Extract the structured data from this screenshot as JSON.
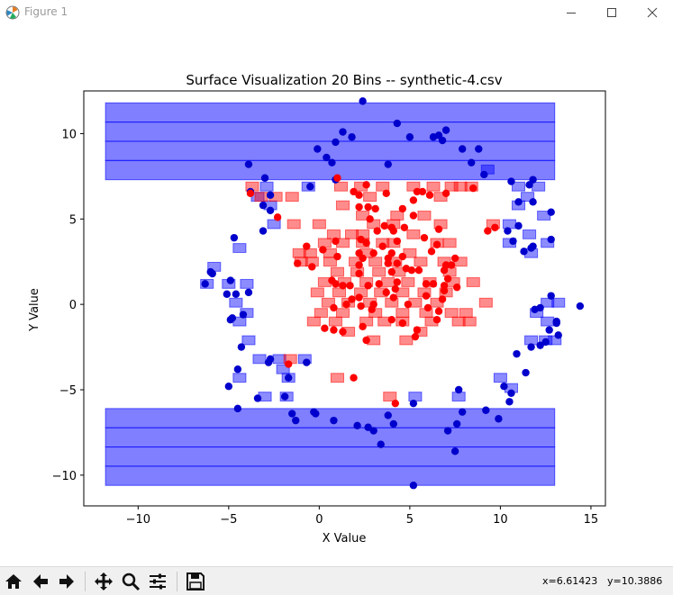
{
  "window": {
    "title": "Figure 1"
  },
  "toolbar": {
    "buttons": [
      "home-icon",
      "back-icon",
      "forward-icon",
      "pan-icon",
      "zoom-icon",
      "configure-icon",
      "save-icon"
    ],
    "coords": {
      "x": "x=6.61423",
      "y": "y=10.3886"
    }
  },
  "chart_data": {
    "type": "scatter",
    "title": "Surface Visualization 20 Bins -- synthetic-4.csv",
    "xlabel": "X Value",
    "ylabel": "Y Value",
    "xlim": [
      -13,
      15.8
    ],
    "ylim": [
      -11.8,
      12.5
    ],
    "xticks": [
      -10,
      -5,
      0,
      5,
      10,
      15
    ],
    "yticks": [
      -10,
      -5,
      0,
      5,
      10
    ],
    "grid": false,
    "colors": {
      "blue_cell": "#0000ff",
      "red_cell": "#ff0000",
      "blue_point": "#0000cc",
      "red_point": "#ff0000"
    },
    "blue_bands": [
      {
        "x0": -11.8,
        "x1": 13.0,
        "y0": 7.3,
        "y1": 11.8,
        "rows": 4
      },
      {
        "x0": -11.8,
        "x1": 13.0,
        "y0": -10.6,
        "y1": -6.1,
        "rows": 4
      }
    ],
    "blue_cells": [
      [
        -3.4,
        6.3
      ],
      [
        -2.9,
        6.9
      ],
      [
        -2.7,
        5.8
      ],
      [
        -2.5,
        4.7
      ],
      [
        -0.6,
        6.9
      ],
      [
        -4.4,
        3.3
      ],
      [
        -5.8,
        2.2
      ],
      [
        -5.0,
        1.2
      ],
      [
        -4.0,
        1.2
      ],
      [
        -6.2,
        1.2
      ],
      [
        -4.6,
        0.1
      ],
      [
        -4.0,
        -0.5
      ],
      [
        -4.4,
        -1.0
      ],
      [
        -3.9,
        -2.1
      ],
      [
        -3.3,
        -3.2
      ],
      [
        -2.2,
        -3.2
      ],
      [
        -0.8,
        -3.2
      ],
      [
        -2.0,
        -3.8
      ],
      [
        -4.4,
        -4.3
      ],
      [
        -1.7,
        -4.3
      ],
      [
        -3.0,
        -5.4
      ],
      [
        -1.8,
        -5.4
      ],
      [
        5.3,
        -5.4
      ],
      [
        7.7,
        -5.4
      ],
      [
        10.0,
        -4.3
      ],
      [
        10.6,
        -4.9
      ],
      [
        11.0,
        6.9
      ],
      [
        12.1,
        6.9
      ],
      [
        11.5,
        6.3
      ],
      [
        11.0,
        5.8
      ],
      [
        12.4,
        5.2
      ],
      [
        10.5,
        4.7
      ],
      [
        11.6,
        4.1
      ],
      [
        10.5,
        3.6
      ],
      [
        12.6,
        3.6
      ],
      [
        11.7,
        3.0
      ],
      [
        12.6,
        0.1
      ],
      [
        13.2,
        0.1
      ],
      [
        12.0,
        -0.5
      ],
      [
        12.6,
        -1.0
      ],
      [
        11.7,
        -2.1
      ],
      [
        12.5,
        -2.1
      ],
      [
        13.0,
        -2.1
      ],
      [
        9.3,
        7.9
      ]
    ],
    "red_cells": [
      [
        -3.7,
        6.9
      ],
      [
        -3.2,
        6.3
      ],
      [
        -2.4,
        6.3
      ],
      [
        -1.5,
        6.3
      ],
      [
        1.2,
        6.9
      ],
      [
        2.3,
        6.9
      ],
      [
        2.8,
        6.3
      ],
      [
        3.5,
        6.9
      ],
      [
        5.2,
        6.9
      ],
      [
        6.3,
        6.9
      ],
      [
        6.7,
        6.3
      ],
      [
        7.3,
        6.9
      ],
      [
        7.8,
        6.9
      ],
      [
        8.4,
        6.9
      ],
      [
        2.4,
        5.2
      ],
      [
        3.0,
        4.7
      ],
      [
        2.4,
        4.1
      ],
      [
        1.8,
        4.1
      ],
      [
        0.0,
        4.7
      ],
      [
        0.8,
        4.1
      ],
      [
        4.3,
        5.2
      ],
      [
        5.8,
        5.2
      ],
      [
        6.7,
        4.7
      ],
      [
        5.2,
        4.1
      ],
      [
        9.6,
        4.7
      ],
      [
        -1.4,
        4.7
      ],
      [
        -0.5,
        3.0
      ],
      [
        -1.1,
        3.0
      ],
      [
        0.3,
        3.6
      ],
      [
        1.3,
        3.6
      ],
      [
        2.4,
        3.6
      ],
      [
        3.5,
        3.6
      ],
      [
        4.1,
        3.6
      ],
      [
        7.2,
        3.6
      ],
      [
        6.5,
        3.6
      ],
      [
        -1.0,
        2.5
      ],
      [
        -0.4,
        2.5
      ],
      [
        0.6,
        2.5
      ],
      [
        2.0,
        2.5
      ],
      [
        3.1,
        2.5
      ],
      [
        4.2,
        2.5
      ],
      [
        5.6,
        2.5
      ],
      [
        6.9,
        2.5
      ],
      [
        7.8,
        2.5
      ],
      [
        1.0,
        1.9
      ],
      [
        2.1,
        1.9
      ],
      [
        3.3,
        1.9
      ],
      [
        4.4,
        1.9
      ],
      [
        7.2,
        1.9
      ],
      [
        0.3,
        1.3
      ],
      [
        1.4,
        1.3
      ],
      [
        2.6,
        1.3
      ],
      [
        3.8,
        1.3
      ],
      [
        4.9,
        1.3
      ],
      [
        6.1,
        1.3
      ],
      [
        7.4,
        1.3
      ],
      [
        8.5,
        1.3
      ],
      [
        -0.1,
        0.7
      ],
      [
        1.1,
        0.7
      ],
      [
        2.3,
        0.7
      ],
      [
        3.4,
        0.7
      ],
      [
        4.6,
        0.7
      ],
      [
        5.8,
        0.7
      ],
      [
        7.0,
        0.7
      ],
      [
        0.5,
        0.1
      ],
      [
        1.6,
        0.1
      ],
      [
        2.8,
        0.1
      ],
      [
        4.0,
        0.1
      ],
      [
        5.3,
        0.1
      ],
      [
        6.5,
        0.1
      ],
      [
        9.2,
        0.1
      ],
      [
        0.1,
        -0.5
      ],
      [
        1.3,
        -0.5
      ],
      [
        3.1,
        -0.5
      ],
      [
        4.6,
        -0.5
      ],
      [
        5.9,
        -0.5
      ],
      [
        7.3,
        -0.5
      ],
      [
        8.1,
        -0.5
      ],
      [
        -0.3,
        -1.0
      ],
      [
        0.9,
        -1.0
      ],
      [
        2.6,
        -1.0
      ],
      [
        3.6,
        -1.0
      ],
      [
        4.6,
        -1.0
      ],
      [
        6.2,
        -1.0
      ],
      [
        7.7,
        -1.0
      ],
      [
        8.3,
        -1.0
      ],
      [
        1.6,
        -1.6
      ],
      [
        5.6,
        -1.6
      ],
      [
        3.0,
        -2.1
      ],
      [
        4.8,
        -2.1
      ],
      [
        -1.6,
        -3.2
      ],
      [
        1.0,
        -4.3
      ],
      [
        3.9,
        -5.4
      ],
      [
        1.3,
        5.8
      ],
      [
        4.1,
        4.7
      ],
      [
        0.6,
        3.0
      ],
      [
        2.6,
        3.0
      ],
      [
        5.0,
        3.0
      ]
    ],
    "blue_points": [
      [
        2.4,
        11.9
      ],
      [
        4.3,
        10.6
      ],
      [
        1.3,
        10.1
      ],
      [
        1.8,
        9.8
      ],
      [
        5.0,
        9.8
      ],
      [
        6.3,
        9.8
      ],
      [
        6.6,
        9.9
      ],
      [
        7.0,
        10.2
      ],
      [
        6.8,
        9.6
      ],
      [
        0.9,
        9.5
      ],
      [
        8.8,
        9.1
      ],
      [
        -0.1,
        9.1
      ],
      [
        7.9,
        9.1
      ],
      [
        0.4,
        8.6
      ],
      [
        0.7,
        8.3
      ],
      [
        3.8,
        8.2
      ],
      [
        8.4,
        8.3
      ],
      [
        -3.9,
        8.2
      ],
      [
        9.1,
        7.6
      ],
      [
        0.9,
        7.3
      ],
      [
        -3.0,
        7.4
      ],
      [
        10.6,
        7.2
      ],
      [
        11.8,
        7.3
      ],
      [
        11.6,
        7.0
      ],
      [
        -0.5,
        6.9
      ],
      [
        -3.8,
        6.6
      ],
      [
        -2.7,
        6.4
      ],
      [
        11.0,
        6.0
      ],
      [
        11.8,
        6.0
      ],
      [
        -3.1,
        5.8
      ],
      [
        -2.7,
        5.5
      ],
      [
        12.8,
        5.4
      ],
      [
        -3.1,
        4.3
      ],
      [
        11.0,
        4.6
      ],
      [
        10.4,
        4.3
      ],
      [
        -4.7,
        3.9
      ],
      [
        10.7,
        3.7
      ],
      [
        12.8,
        3.8
      ],
      [
        11.8,
        3.4
      ],
      [
        11.7,
        3.3
      ],
      [
        11.3,
        3.1
      ],
      [
        -6.0,
        1.9
      ],
      [
        -5.9,
        1.8
      ],
      [
        -6.3,
        1.2
      ],
      [
        -4.9,
        1.4
      ],
      [
        -4.6,
        0.6
      ],
      [
        -3.9,
        0.7
      ],
      [
        -5.1,
        0.6
      ],
      [
        12.8,
        0.5
      ],
      [
        14.4,
        -0.1
      ],
      [
        11.9,
        -0.3
      ],
      [
        12.2,
        -0.2
      ],
      [
        -4.8,
        -0.8
      ],
      [
        -4.9,
        -0.9
      ],
      [
        -4.2,
        -0.6
      ],
      [
        13.1,
        -1.0
      ],
      [
        13.1,
        -1.1
      ],
      [
        12.7,
        -1.5
      ],
      [
        13.2,
        -1.8
      ],
      [
        12.5,
        -2.2
      ],
      [
        11.7,
        -2.5
      ],
      [
        12.2,
        -2.4
      ],
      [
        -4.3,
        -2.5
      ],
      [
        10.9,
        -2.9
      ],
      [
        -2.7,
        -3.2
      ],
      [
        -2.8,
        -3.4
      ],
      [
        -0.7,
        -3.4
      ],
      [
        11.4,
        -4.0
      ],
      [
        -4.5,
        -3.8
      ],
      [
        -1.7,
        -4.3
      ],
      [
        -5.0,
        -4.8
      ],
      [
        10.2,
        -4.8
      ],
      [
        10.6,
        -5.2
      ],
      [
        7.7,
        -5.0
      ],
      [
        -3.4,
        -5.5
      ],
      [
        -1.9,
        -5.4
      ],
      [
        10.5,
        -5.7
      ],
      [
        5.2,
        -5.8
      ],
      [
        -4.5,
        -6.1
      ],
      [
        9.2,
        -6.2
      ],
      [
        7.9,
        -6.3
      ],
      [
        -0.2,
        -6.4
      ],
      [
        -0.3,
        -6.3
      ],
      [
        -1.5,
        -6.4
      ],
      [
        -1.3,
        -6.8
      ],
      [
        0.8,
        -6.8
      ],
      [
        3.8,
        -6.5
      ],
      [
        9.9,
        -6.7
      ],
      [
        4.1,
        -7.0
      ],
      [
        2.1,
        -7.1
      ],
      [
        2.7,
        -7.2
      ],
      [
        3.0,
        -7.4
      ],
      [
        7.6,
        -7.0
      ],
      [
        7.1,
        -7.4
      ],
      [
        3.4,
        -8.2
      ],
      [
        7.5,
        -8.6
      ],
      [
        5.2,
        -10.6
      ]
    ],
    "red_points": [
      [
        1.0,
        7.4
      ],
      [
        2.6,
        7.0
      ],
      [
        1.9,
        6.6
      ],
      [
        2.2,
        6.4
      ],
      [
        3.7,
        6.5
      ],
      [
        5.4,
        6.6
      ],
      [
        5.7,
        6.6
      ],
      [
        6.1,
        6.4
      ],
      [
        7.0,
        6.5
      ],
      [
        8.5,
        6.8
      ],
      [
        -3.8,
        6.5
      ],
      [
        5.2,
        6.1
      ],
      [
        2.2,
        5.7
      ],
      [
        2.7,
        5.7
      ],
      [
        3.1,
        5.6
      ],
      [
        -2.3,
        5.1
      ],
      [
        4.6,
        5.6
      ],
      [
        5.2,
        5.2
      ],
      [
        2.8,
        5.0
      ],
      [
        4.7,
        4.5
      ],
      [
        3.2,
        4.3
      ],
      [
        4.0,
        4.5
      ],
      [
        3.6,
        4.6
      ],
      [
        9.3,
        4.3
      ],
      [
        6.6,
        4.4
      ],
      [
        9.7,
        4.5
      ],
      [
        4.1,
        4.3
      ],
      [
        5.8,
        3.9
      ],
      [
        0.9,
        3.7
      ],
      [
        2.3,
        3.8
      ],
      [
        2.6,
        3.6
      ],
      [
        4.3,
        3.7
      ],
      [
        6.5,
        3.5
      ],
      [
        -0.7,
        3.4
      ],
      [
        0.2,
        3.2
      ],
      [
        3.5,
        3.4
      ],
      [
        6.2,
        3.1
      ],
      [
        2.2,
        3.0
      ],
      [
        3.0,
        3.0
      ],
      [
        1.0,
        2.8
      ],
      [
        2.4,
        2.7
      ],
      [
        4.0,
        3.0
      ],
      [
        3.8,
        2.7
      ],
      [
        4.6,
        2.8
      ],
      [
        7.5,
        2.7
      ],
      [
        -1.2,
        2.4
      ],
      [
        -0.4,
        2.2
      ],
      [
        2.2,
        2.3
      ],
      [
        3.8,
        2.4
      ],
      [
        4.3,
        2.4
      ],
      [
        4.8,
        2.1
      ],
      [
        7.0,
        2.3
      ],
      [
        7.3,
        2.3
      ],
      [
        6.9,
        2.0
      ],
      [
        5.5,
        2.0
      ],
      [
        2.2,
        1.8
      ],
      [
        4.0,
        1.9
      ],
      [
        5.1,
        2.0
      ],
      [
        7.1,
        1.5
      ],
      [
        0.7,
        1.4
      ],
      [
        0.9,
        1.2
      ],
      [
        1.3,
        1.1
      ],
      [
        1.7,
        1.1
      ],
      [
        2.7,
        1.1
      ],
      [
        3.3,
        1.2
      ],
      [
        4.3,
        1.3
      ],
      [
        5.9,
        1.2
      ],
      [
        6.3,
        1.2
      ],
      [
        6.9,
        1.1
      ],
      [
        7.6,
        1.0
      ],
      [
        6.9,
        0.8
      ],
      [
        3.7,
        0.7
      ],
      [
        4.2,
        0.9
      ],
      [
        1.8,
        0.3
      ],
      [
        2.2,
        0.4
      ],
      [
        4.1,
        0.4
      ],
      [
        6.8,
        0.3
      ],
      [
        5.9,
        0.5
      ],
      [
        1.5,
        0.0
      ],
      [
        3.0,
        0.0
      ],
      [
        2.3,
        -0.1
      ],
      [
        2.9,
        -0.3
      ],
      [
        4.9,
        0.0
      ],
      [
        6.0,
        -0.2
      ],
      [
        6.6,
        -0.4
      ],
      [
        0.8,
        -0.2
      ],
      [
        0.3,
        -1.4
      ],
      [
        0.8,
        -1.5
      ],
      [
        1.3,
        -1.6
      ],
      [
        2.4,
        -1.3
      ],
      [
        4.0,
        -0.9
      ],
      [
        4.6,
        -1.1
      ],
      [
        6.5,
        -0.9
      ],
      [
        2.6,
        -2.1
      ],
      [
        5.3,
        -1.9
      ],
      [
        5.4,
        -1.5
      ],
      [
        -1.7,
        -3.5
      ],
      [
        1.9,
        -4.3
      ],
      [
        4.2,
        -5.8
      ]
    ]
  }
}
